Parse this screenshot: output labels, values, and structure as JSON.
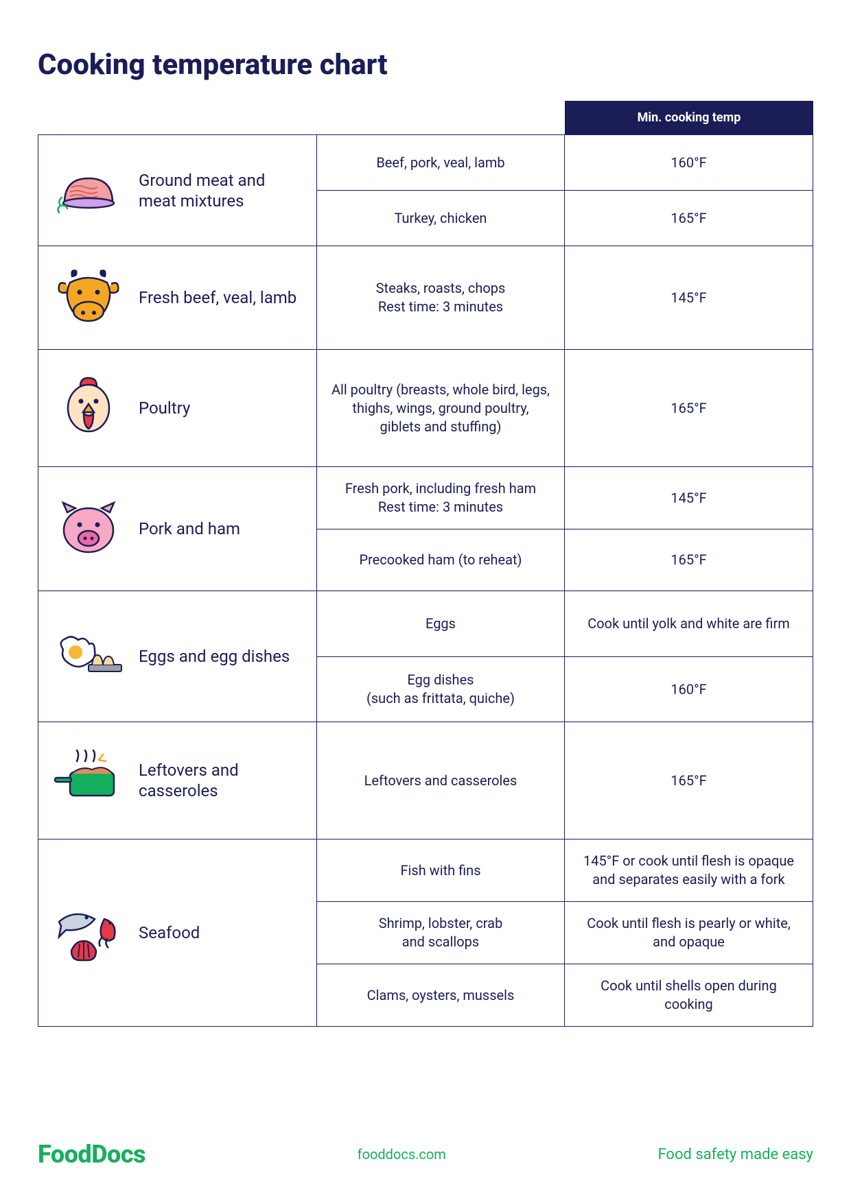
{
  "title": "Cooking temperature chart",
  "header": "Min. cooking temp",
  "colors": {
    "primary": "#1a1d56",
    "accent": "#15b05d",
    "background": "#ffffff"
  },
  "sections": [
    {
      "icon": "ground-meat-icon",
      "category": "Ground meat and meat mixtures",
      "rows": [
        {
          "item": "Beef, pork, veal, lamb",
          "temp": "160°F"
        },
        {
          "item": "Turkey, chicken",
          "temp": "165°F"
        }
      ]
    },
    {
      "icon": "cow-icon",
      "category": "Fresh beef, veal, lamb",
      "rows": [
        {
          "item": "Steaks, roasts, chops\nRest time: 3 minutes",
          "temp": "145°F"
        }
      ]
    },
    {
      "icon": "chicken-icon",
      "category": "Poultry",
      "rows": [
        {
          "item": "All poultry (breasts, whole bird, legs, thighs, wings, ground poultry, giblets and stuffing)",
          "temp": "165°F"
        }
      ]
    },
    {
      "icon": "pig-icon",
      "category": "Pork and ham",
      "rows": [
        {
          "item": "Fresh pork, including fresh ham\nRest time: 3 minutes",
          "temp": "145°F"
        },
        {
          "item": "Precooked ham (to reheat)",
          "temp": "165°F"
        }
      ]
    },
    {
      "icon": "egg-icon",
      "category": "Eggs and egg dishes",
      "rows": [
        {
          "item": "Eggs",
          "temp": "Cook until yolk and white are firm"
        },
        {
          "item": "Egg dishes\n(such as frittata, quiche)",
          "temp": "160°F"
        }
      ]
    },
    {
      "icon": "pot-icon",
      "category": "Leftovers and casseroles",
      "rows": [
        {
          "item": "Leftovers and casseroles",
          "temp": "165°F"
        }
      ]
    },
    {
      "icon": "seafood-icon",
      "category": "Seafood",
      "rows": [
        {
          "item": "Fish with fins",
          "temp": "145°F or cook until flesh is opaque and separates easily with a fork"
        },
        {
          "item": "Shrimp, lobster, crab\nand scallops",
          "temp": "Cook until flesh is pearly or white, and opaque"
        },
        {
          "item": "Clams, oysters, mussels",
          "temp": "Cook until shells open during cooking"
        }
      ]
    }
  ],
  "footer": {
    "logo": "FoodDocs",
    "url": "fooddocs.com",
    "tagline": "Food safety made easy"
  }
}
